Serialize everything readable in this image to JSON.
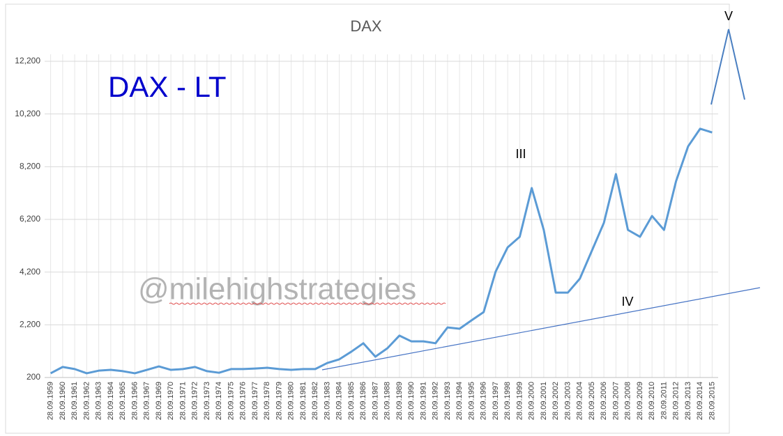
{
  "chart_data": {
    "type": "line",
    "title": "DAX",
    "annotations": {
      "main": "DAX - LT",
      "watermark": "@milehighstrategies",
      "wave3": "III",
      "wave4": "IV",
      "wave5": "V"
    },
    "categories": [
      "28.09.1959",
      "28.09.1960",
      "28.09.1961",
      "28.09.1962",
      "28.09.1963",
      "28.09.1964",
      "28.09.1965",
      "28.09.1966",
      "28.09.1967",
      "28.09.1969",
      "28.09.1970",
      "28.09.1971",
      "28.09.1972",
      "28.09.1973",
      "28.09.1974",
      "28.09.1975",
      "28.09.1976",
      "28.09.1977",
      "28.09.1978",
      "28.09.1979",
      "28.09.1980",
      "28.09.1981",
      "28.09.1982",
      "28.09.1983",
      "28.09.1984",
      "28.09.1985",
      "28.09.1986",
      "28.09.1987",
      "28.09.1988",
      "28.09.1989",
      "28.09.1990",
      "28.09.1991",
      "28.09.1992",
      "28.09.1993",
      "28.09.1994",
      "28.09.1995",
      "28.09.1996",
      "28.09.1997",
      "28.09.1998",
      "28.09.1999",
      "28.09.2000",
      "28.09.2001",
      "28.09.2002",
      "28.09.2003",
      "28.09.2004",
      "28.09.2005",
      "28.09.2006",
      "28.09.2007",
      "28.09.2008",
      "28.09.2009",
      "28.09.2010",
      "28.09.2011",
      "28.09.2012",
      "28.09.2013",
      "28.09.2014",
      "28.09.2015"
    ],
    "values": [
      360,
      600,
      520,
      360,
      460,
      490,
      440,
      360,
      490,
      620,
      490,
      520,
      600,
      440,
      380,
      520,
      520,
      540,
      570,
      520,
      490,
      520,
      520,
      750,
      890,
      1180,
      1500,
      990,
      1310,
      1790,
      1570,
      1570,
      1500,
      2100,
      2050,
      2370,
      2680,
      4220,
      5140,
      5540,
      7390,
      5800,
      3420,
      3420,
      3950,
      5010,
      6070,
      7920,
      5800,
      5540,
      6330,
      5800,
      7650,
      8970,
      9640,
      9500
    ],
    "color": "#5b9bd5",
    "ylim": [
      200,
      12200
    ],
    "yticks": [
      200,
      {
        "value": 2200,
        "label": "2,200"
      },
      {
        "value": 4200,
        "label": "4,200"
      },
      {
        "value": 6200,
        "label": "6,200"
      },
      {
        "value": 8200,
        "label": "8,200"
      },
      {
        "value": 10200,
        "label": "10,200"
      },
      {
        "value": 12200,
        "label": "12,200"
      }
    ],
    "grid": true
  }
}
